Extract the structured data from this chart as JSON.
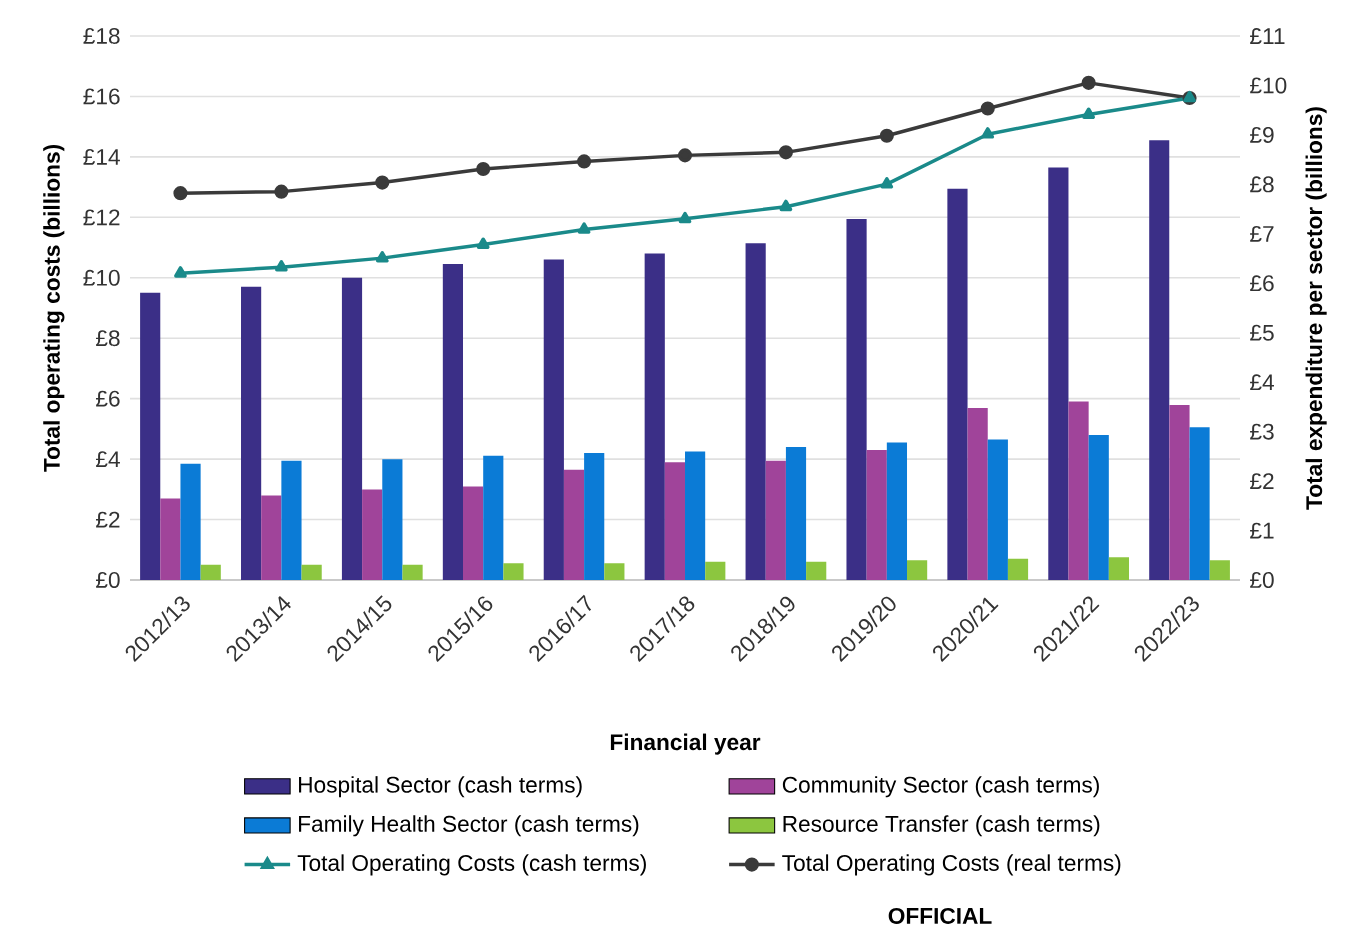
{
  "chart_data": {
    "type": "bar",
    "xlabel": "Financial year",
    "ylabel": "Total operating costs (billions)",
    "y2label": "Total expenditure per sector (billions)",
    "categories": [
      "2012/13",
      "2013/14",
      "2014/15",
      "2015/16",
      "2016/17",
      "2017/18",
      "2018/19",
      "2019/20",
      "2020/21",
      "2021/22",
      "2022/23"
    ],
    "series": [
      {
        "name": "Hospital Sector (cash terms)",
        "axis": "y2",
        "color": "#3b2f87",
        "values": [
          5.81,
          5.93,
          6.11,
          6.39,
          6.48,
          6.6,
          6.81,
          7.3,
          7.91,
          8.34,
          8.89
        ]
      },
      {
        "name": "Community Sector (cash terms)",
        "axis": "y2",
        "color": "#a0449a",
        "values": [
          1.65,
          1.71,
          1.83,
          1.89,
          2.23,
          2.38,
          2.41,
          2.63,
          3.48,
          3.61,
          3.54
        ]
      },
      {
        "name": "Family Health Sector (cash terms)",
        "axis": "y2",
        "color": "#0b7bd6",
        "values": [
          2.35,
          2.41,
          2.44,
          2.51,
          2.57,
          2.6,
          2.69,
          2.78,
          2.84,
          2.93,
          3.09
        ]
      },
      {
        "name": "Resource Transfer (cash terms)",
        "axis": "y2",
        "color": "#8cc63f",
        "values": [
          0.31,
          0.31,
          0.31,
          0.34,
          0.34,
          0.37,
          0.37,
          0.4,
          0.43,
          0.46,
          0.4
        ]
      },
      {
        "name": "Total Operating Costs (cash terms)",
        "type": "line",
        "marker": "triangle",
        "line_style": "solid",
        "color": "#1a8a8a",
        "values": [
          10.15,
          10.35,
          10.65,
          11.1,
          11.6,
          11.95,
          12.35,
          13.1,
          14.75,
          15.4,
          15.95
        ]
      },
      {
        "name": "Total Operating Costs (real terms)",
        "type": "line",
        "marker": "circle",
        "line_style": "solid",
        "color": "#3a3a3a",
        "values": [
          12.8,
          12.85,
          13.15,
          13.6,
          13.85,
          14.05,
          14.15,
          14.7,
          15.6,
          16.45,
          15.95
        ]
      }
    ],
    "ylim": [
      0,
      18
    ],
    "yticks": [
      {
        "value": 0,
        "label": "£0"
      },
      {
        "value": 2,
        "label": "£2"
      },
      {
        "value": 4,
        "label": "£4"
      },
      {
        "value": 6,
        "label": "£6"
      },
      {
        "value": 8,
        "label": "£8"
      },
      {
        "value": 10,
        "label": "£10"
      },
      {
        "value": 12,
        "label": "£12"
      },
      {
        "value": 14,
        "label": "£14"
      },
      {
        "value": 16,
        "label": "£16"
      },
      {
        "value": 18,
        "label": "£18"
      }
    ],
    "y2lim": [
      0,
      11
    ],
    "y2ticks": [
      {
        "value": 0,
        "label": "£0"
      },
      {
        "value": 1,
        "label": "£1"
      },
      {
        "value": 2,
        "label": "£2"
      },
      {
        "value": 3,
        "label": "£3"
      },
      {
        "value": 4,
        "label": "£4"
      },
      {
        "value": 5,
        "label": "£5"
      },
      {
        "value": 6,
        "label": "£6"
      },
      {
        "value": 7,
        "label": "£7"
      },
      {
        "value": 8,
        "label": "£8"
      },
      {
        "value": 9,
        "label": "£9"
      },
      {
        "value": 10,
        "label": "£10"
      },
      {
        "value": 11,
        "label": "£11"
      }
    ],
    "grid": "y",
    "legend": "bottom",
    "annotations": [
      "OFFICIAL"
    ]
  }
}
